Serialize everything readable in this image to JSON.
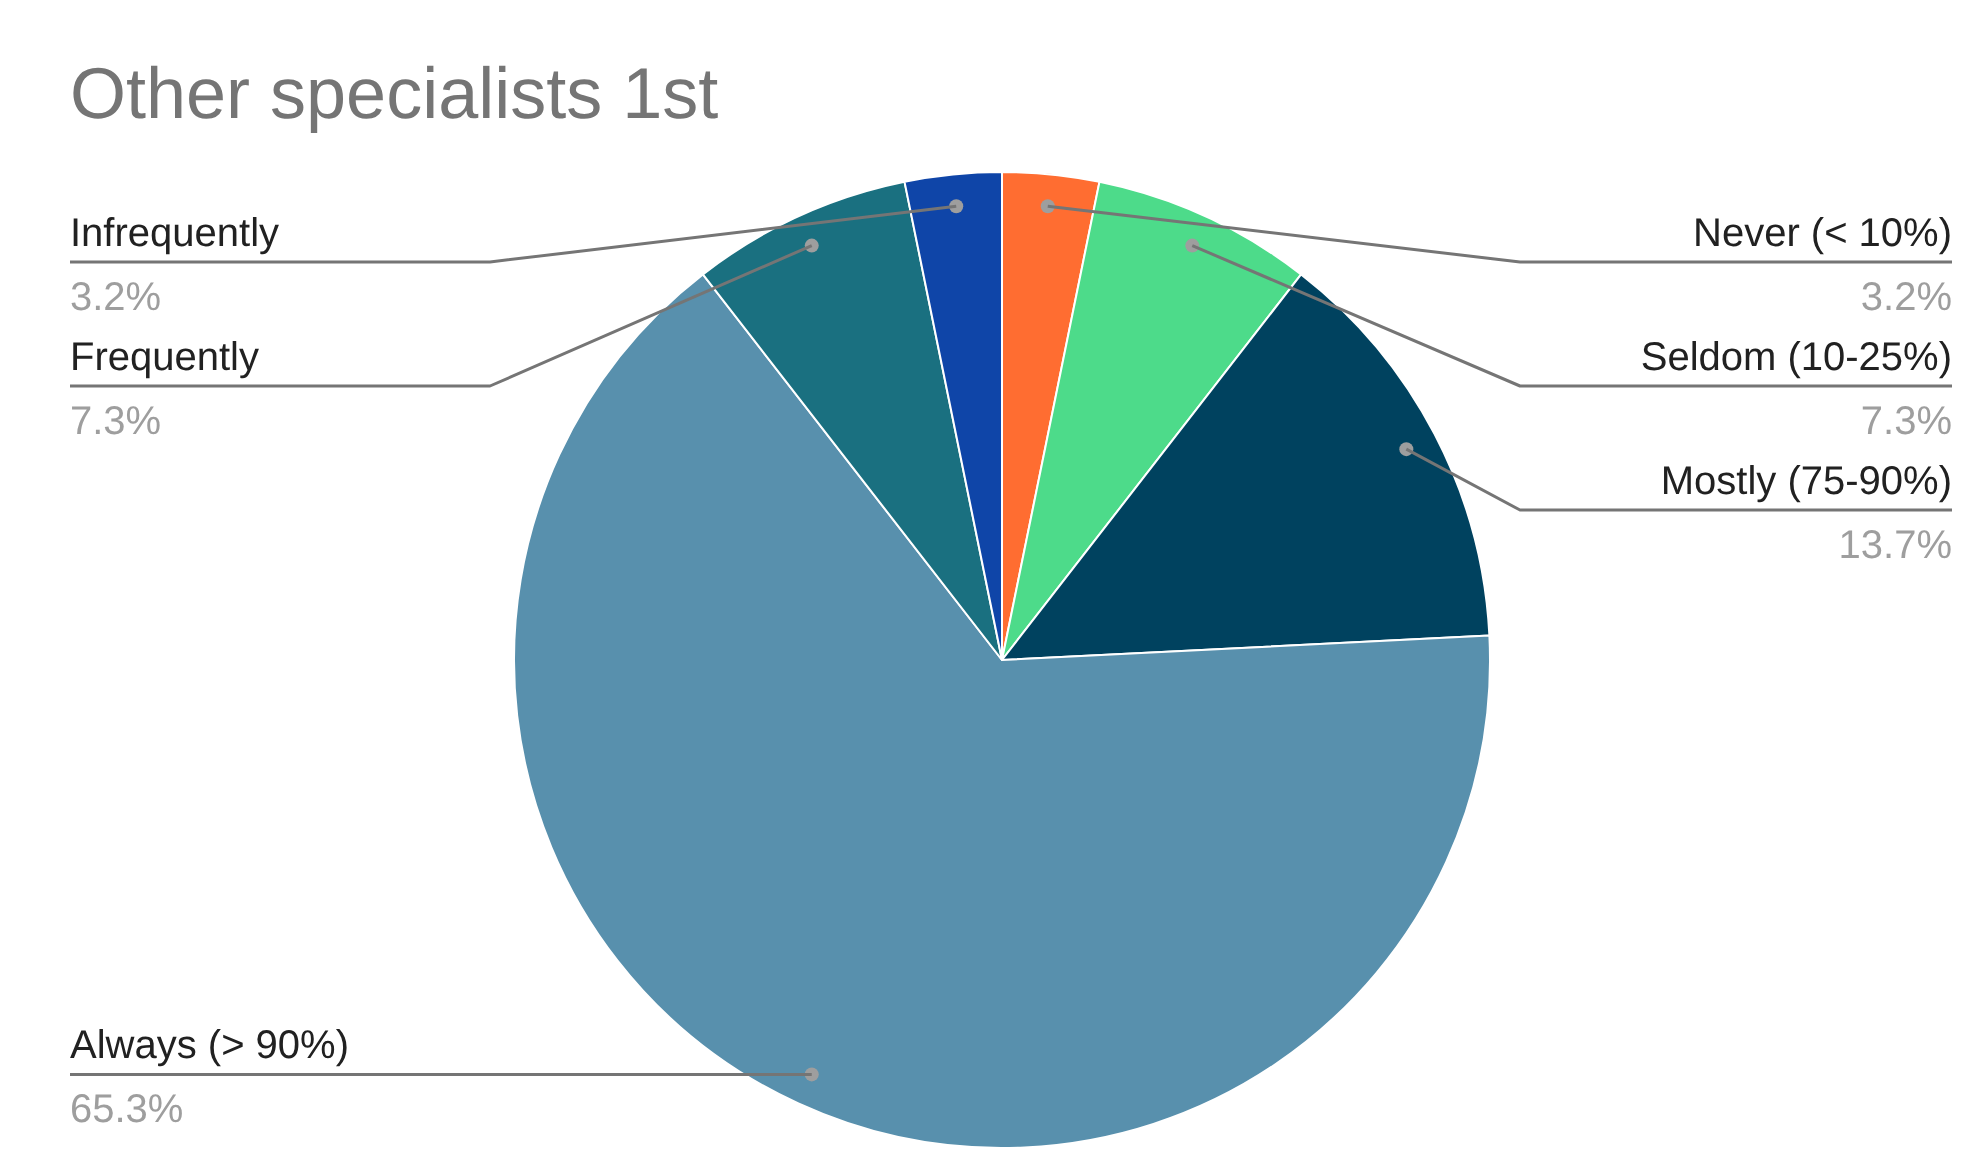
{
  "chart_data": {
    "type": "pie",
    "title": "Other specialists 1st",
    "categories": [
      "Never (< 10%)",
      "Seldom (10-25%)",
      "Mostly (75-90%)",
      "Always (> 90%)",
      "Frequently",
      "Infrequently"
    ],
    "values": [
      3.2,
      7.3,
      13.7,
      65.3,
      7.3,
      3.2
    ],
    "value_labels": [
      "3.2%",
      "7.3%",
      "13.7%",
      "65.3%",
      "7.3%",
      "3.2%"
    ],
    "colors": [
      "#ff6d31",
      "#4ddb8a",
      "#00425f",
      "#5890ad",
      "#1a7080",
      "#0f45a8"
    ]
  }
}
